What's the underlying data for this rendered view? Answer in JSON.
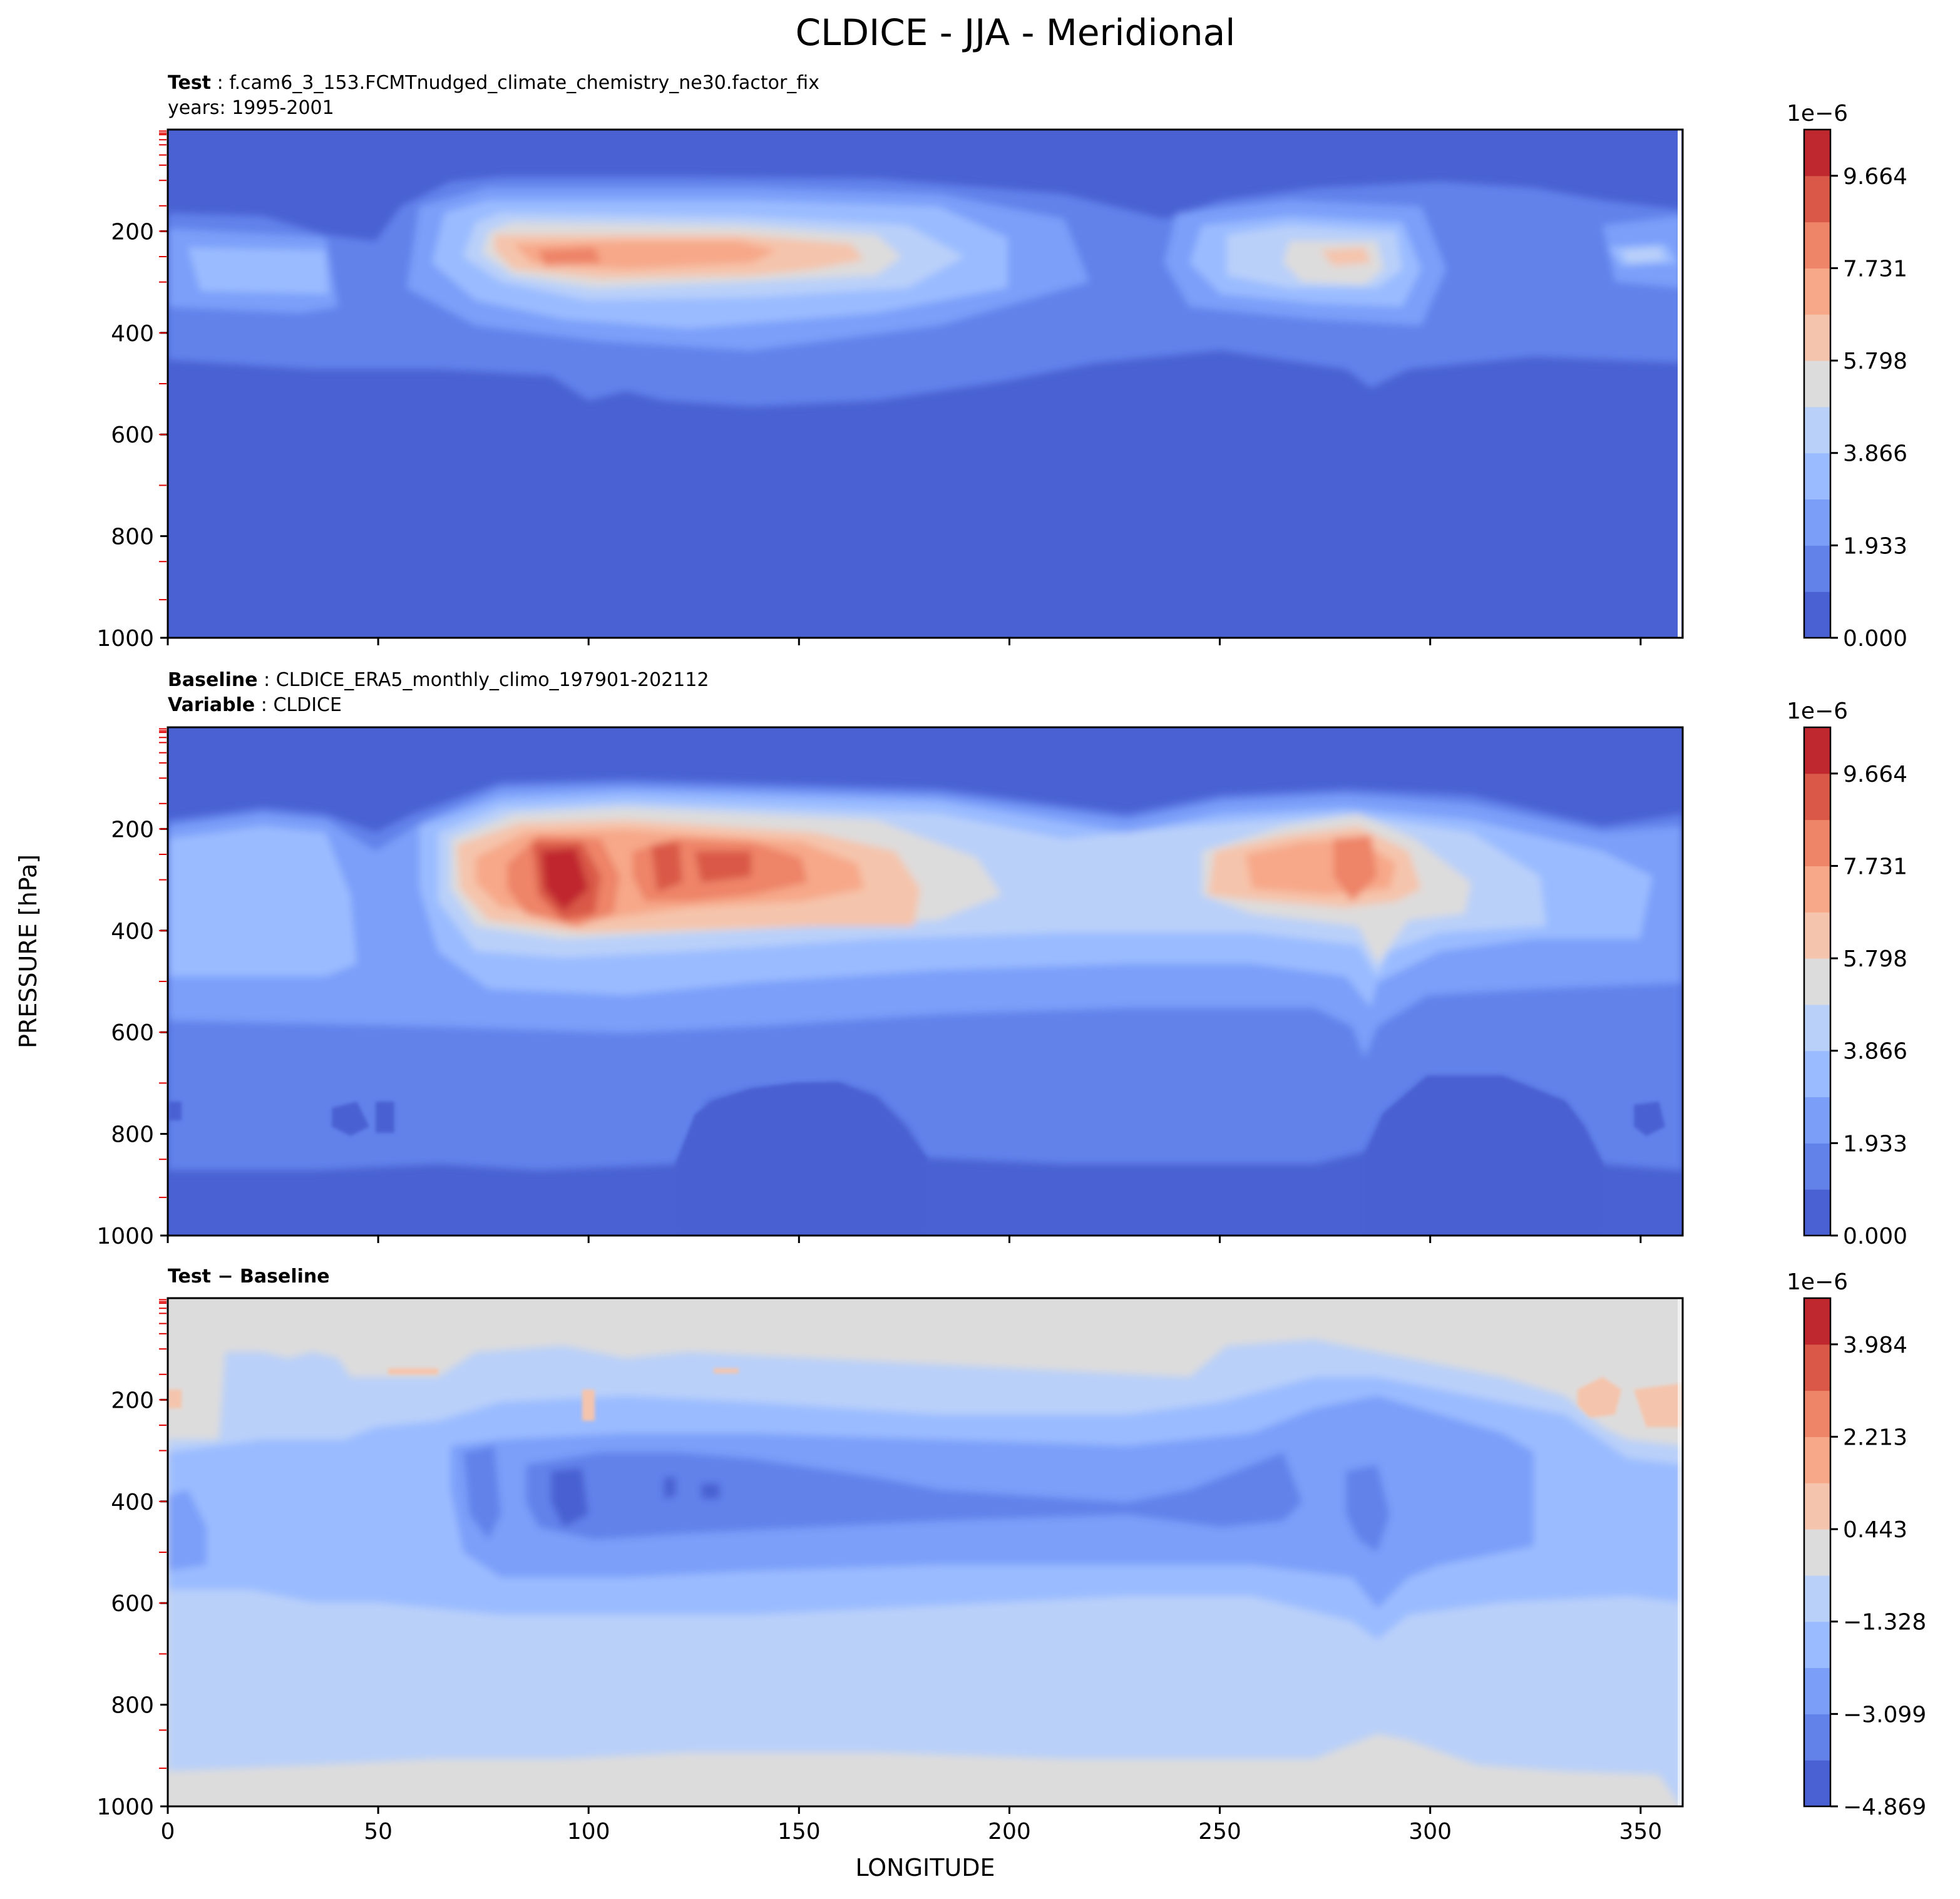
{
  "figure": {
    "title": "CLDICE - JJA - Meridional",
    "shared_ylabel": "PRESSURE [hPa]",
    "shared_xlabel": "LONGITUDE"
  },
  "chart_data": [
    {
      "type": "heatmap",
      "panel": "test",
      "header_bold": "Test",
      "header_text": "f.cam6_3_153.FCMTnudged_climate_chemistry_ne30.factor_fix",
      "subheader": "years: 1995-2001",
      "x_ticks": [
        "0",
        "50",
        "100",
        "150",
        "200",
        "250",
        "300",
        "350"
      ],
      "y_ticks": [
        "200",
        "400",
        "600",
        "800",
        "1000"
      ],
      "xlim": [
        0,
        360
      ],
      "ylim": [
        1000,
        0
      ],
      "colorbar": {
        "exponent": "1e−6",
        "ticks": [
          "0.000",
          "1.933",
          "3.866",
          "5.798",
          "7.731",
          "9.664"
        ],
        "levels": 11,
        "colors": [
          "#4961d2",
          "#6282ea",
          "#7b9ff9",
          "#9abbff",
          "#b9d0f9",
          "#dddcdc",
          "#f5c4ac",
          "#f7a889",
          "#ee8468",
          "#d95847",
          "#c0282f"
        ]
      }
    },
    {
      "type": "heatmap",
      "panel": "baseline",
      "header_bold": "Baseline",
      "header_text": "CLDICE_ERA5_monthly_climo_197901-202112",
      "subheader_bold": "Variable",
      "subheader": "CLDICE",
      "x_ticks": [
        "0",
        "50",
        "100",
        "150",
        "200",
        "250",
        "300",
        "350"
      ],
      "y_ticks": [
        "200",
        "400",
        "600",
        "800",
        "1000"
      ],
      "xlim": [
        0,
        360
      ],
      "ylim": [
        1000,
        0
      ],
      "colorbar": {
        "exponent": "1e−6",
        "ticks": [
          "0.000",
          "1.933",
          "3.866",
          "5.798",
          "7.731",
          "9.664"
        ],
        "levels": 11,
        "colors": [
          "#4961d2",
          "#6282ea",
          "#7b9ff9",
          "#9abbff",
          "#b9d0f9",
          "#dddcdc",
          "#f5c4ac",
          "#f7a889",
          "#ee8468",
          "#d95847",
          "#c0282f"
        ]
      }
    },
    {
      "type": "heatmap",
      "panel": "difference",
      "header_bold": "Test − Baseline",
      "x_ticks": [
        "0",
        "50",
        "100",
        "150",
        "200",
        "250",
        "300",
        "350"
      ],
      "y_ticks": [
        "200",
        "400",
        "600",
        "800",
        "1000"
      ],
      "xlim": [
        0,
        360
      ],
      "ylim": [
        1000,
        0
      ],
      "colorbar": {
        "exponent": "1e−6",
        "ticks": [
          "−4.869",
          "−3.099",
          "−1.328",
          "0.443",
          "2.213",
          "3.984"
        ],
        "levels": 11,
        "colors": [
          "#4961d2",
          "#6282ea",
          "#7b9ff9",
          "#9abbff",
          "#b9d0f9",
          "#dddcdc",
          "#f5c4ac",
          "#f7a889",
          "#ee8468",
          "#d95847",
          "#c0282f"
        ]
      }
    }
  ]
}
